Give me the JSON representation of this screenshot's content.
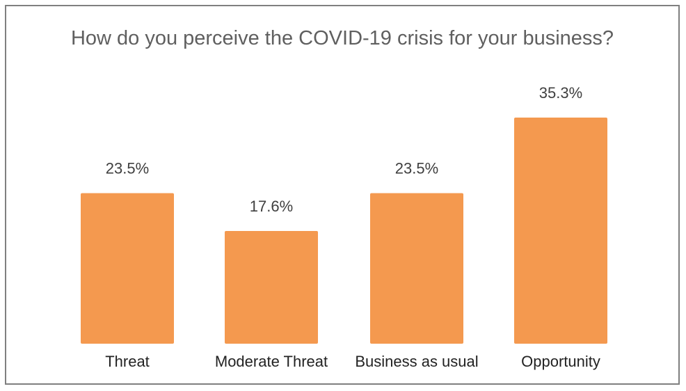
{
  "chart_data": {
    "type": "bar",
    "title": "How do you perceive the COVID-19 crisis for your business?",
    "categories": [
      "Threat",
      "Moderate Threat",
      "Business as usual",
      "Opportunity"
    ],
    "values": [
      23.5,
      17.6,
      23.5,
      35.3
    ],
    "value_labels": [
      "23.5%",
      "17.6%",
      "23.5%",
      "35.3%"
    ],
    "xlabel": "",
    "ylabel": "",
    "ylim": [
      0,
      35.3
    ],
    "grid": false,
    "legend": "none",
    "bar_color": "#F4994F"
  }
}
